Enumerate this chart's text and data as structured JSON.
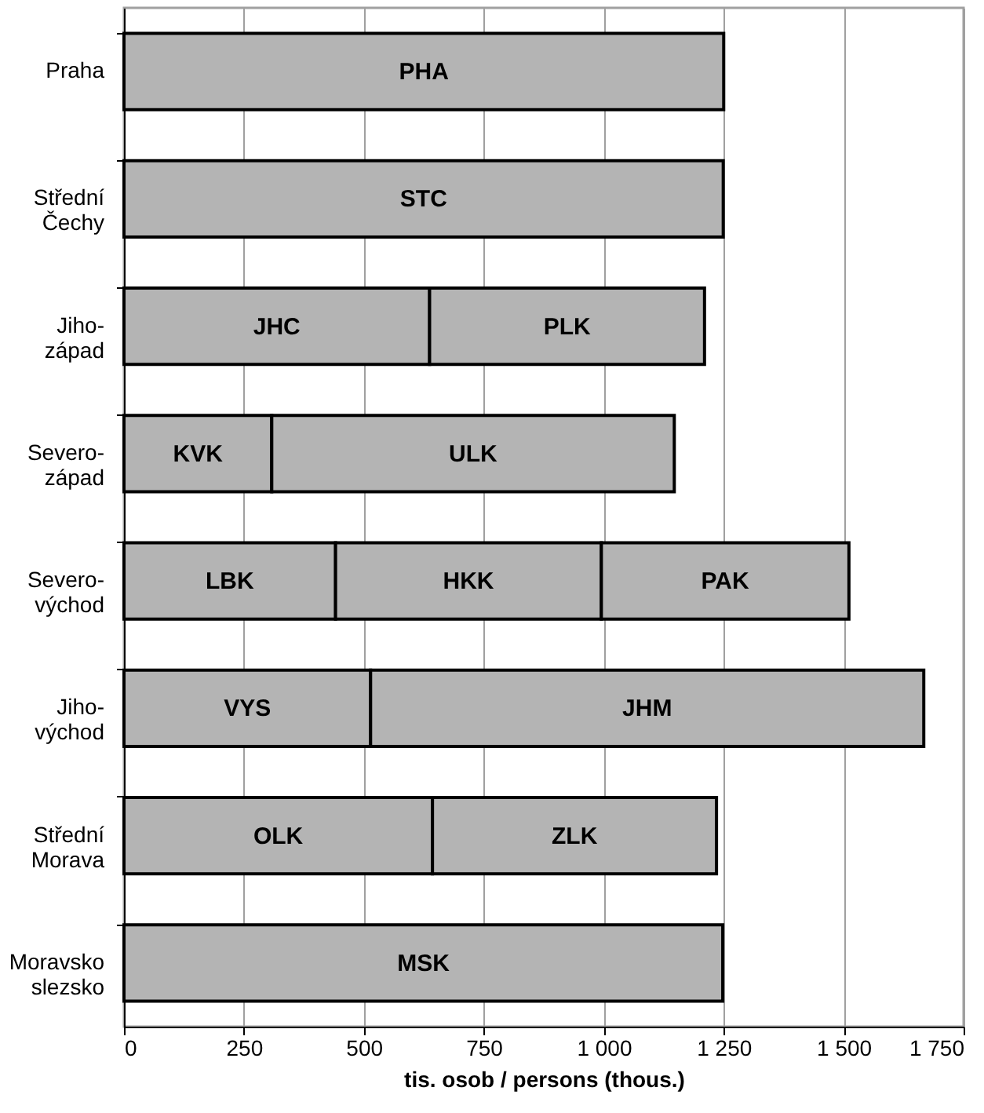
{
  "chart_data": {
    "type": "bar",
    "orientation": "horizontal",
    "stacked": true,
    "categories": [
      "Praha",
      "Střední\nČechy",
      "Jiho-\nzápad",
      "Severo-\nzápad",
      "Severo-\nvýchod",
      "Jiho-\nvýchod",
      "Střední\nMorava",
      "Moravsko\nslezsko"
    ],
    "series": [
      {
        "color": "#b4b4b4",
        "values": [
          1250,
          1249,
          637,
          308,
          441,
          514,
          643,
          1248
        ],
        "value_labels": [
          "PHA",
          "STC",
          "JHC",
          "KVK",
          "LBK",
          "VYS",
          "OLK",
          "MSK"
        ]
      },
      {
        "color": "#b4b4b4",
        "values": [
          null,
          null,
          573,
          839,
          554,
          1153,
          592,
          null
        ],
        "value_labels": [
          null,
          null,
          "PLK",
          "ULK",
          "HKK",
          "JHM",
          "ZLK",
          null
        ]
      },
      {
        "color": "#b4b4b4",
        "values": [
          null,
          null,
          null,
          null,
          516,
          null,
          null,
          null
        ],
        "value_labels": [
          null,
          null,
          null,
          null,
          "PAK",
          null,
          null,
          null
        ]
      }
    ],
    "xlabel": "tis. osob / persons (thous.)",
    "xlim": [
      0,
      1750
    ],
    "xticks": [
      0,
      250,
      500,
      750,
      {
        "value": 1000,
        "label": "1 000"
      },
      {
        "value": 1250,
        "label": "1 250"
      },
      {
        "value": 1500,
        "label": "1 500"
      },
      {
        "value": 1750,
        "label": "1 750"
      }
    ],
    "grid": "x",
    "legend": false
  }
}
